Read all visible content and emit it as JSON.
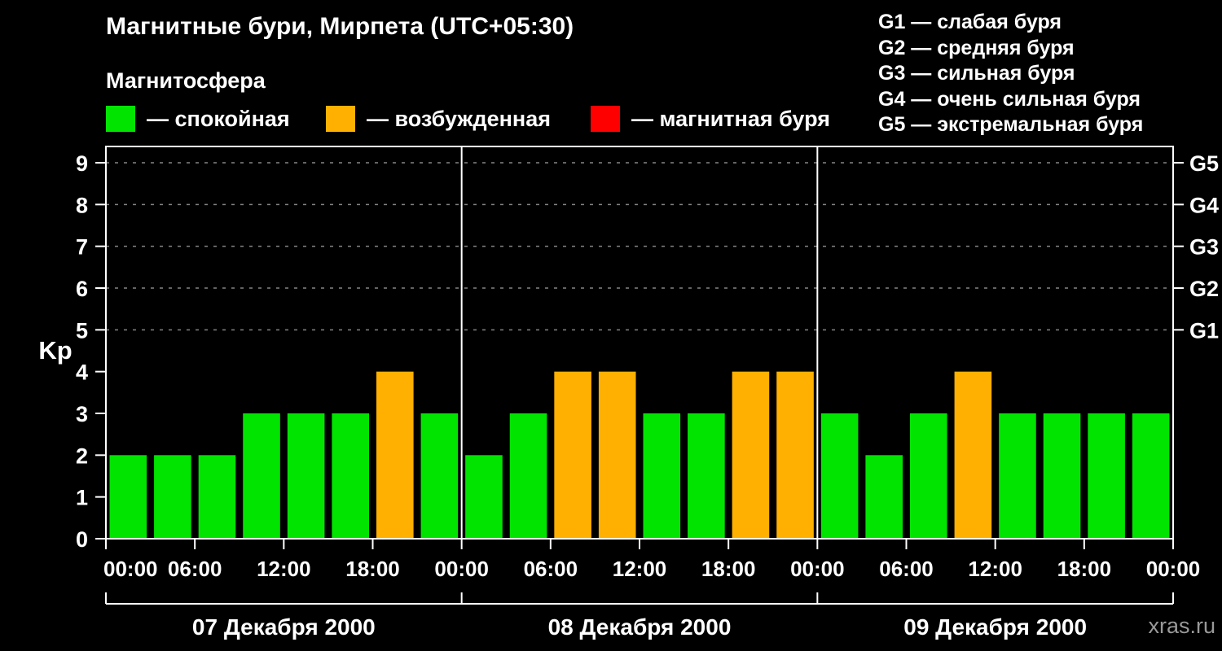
{
  "title": "Магнитные бури, Мирпета (UTC+05:30)",
  "subtitle": "Магнитосфера",
  "legend": {
    "items": [
      {
        "id": "quiet",
        "label": "— спокойная",
        "color": "#00e400"
      },
      {
        "id": "excited",
        "label": "— возбужденная",
        "color": "#ffb000"
      },
      {
        "id": "storm",
        "label": "— магнитная буря",
        "color": "#ff0000"
      }
    ]
  },
  "g_legend": {
    "items": [
      "G1 — слабая буря",
      "G2 — средняя буря",
      "G3 — сильная буря",
      "G4 — очень сильная буря",
      "G5 — экстремальная буря"
    ]
  },
  "watermark": "xras.ru",
  "chart_data": {
    "type": "bar",
    "title": "Магнитные бури, Мирпета (UTC+05:30)",
    "ylabel": "Kp",
    "ylim": [
      0,
      9.6
    ],
    "yticks": [
      0,
      1,
      2,
      3,
      4,
      5,
      6,
      7,
      8,
      9
    ],
    "gridline_levels": [
      5,
      6,
      7,
      8,
      9
    ],
    "bar_interval_hours": 3,
    "x_tick_labels": [
      "00:00",
      "06:00",
      "12:00",
      "18:00",
      "00:00",
      "06:00",
      "12:00",
      "18:00",
      "00:00",
      "06:00",
      "12:00",
      "18:00",
      "00:00"
    ],
    "right_axis": [
      {
        "label": "G1",
        "kp": 5
      },
      {
        "label": "G2",
        "kp": 6
      },
      {
        "label": "G3",
        "kp": 7
      },
      {
        "label": "G4",
        "kp": 8
      },
      {
        "label": "G5",
        "kp": 9
      }
    ],
    "days": [
      {
        "date": "07 Декабря 2000",
        "values": [
          2,
          2,
          2,
          3,
          3,
          3,
          4,
          3
        ]
      },
      {
        "date": "08 Декабря 2000",
        "values": [
          2,
          3,
          4,
          4,
          3,
          3,
          4,
          4
        ]
      },
      {
        "date": "09 Декабря 2000",
        "values": [
          3,
          2,
          3,
          4,
          3,
          3,
          3,
          3
        ]
      }
    ],
    "colors": {
      "quiet": "#00e400",
      "excited": "#ffb000",
      "storm": "#ff0000"
    },
    "color_rule": "Kp<=3 quiet(green), Kp=4 excited(orange), Kp>=5 storm(red)"
  }
}
